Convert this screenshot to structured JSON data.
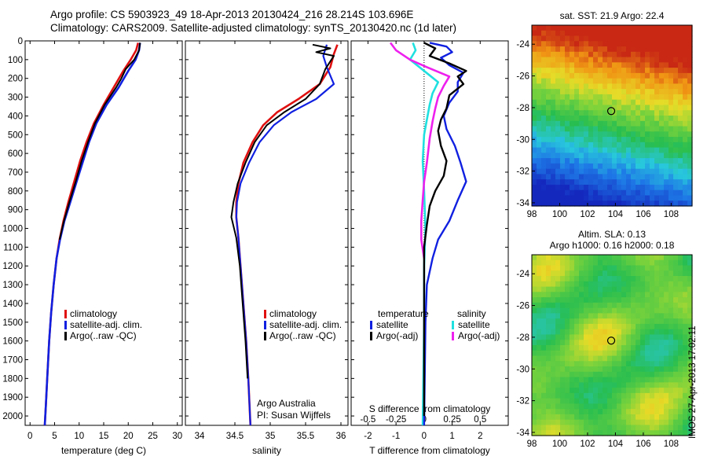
{
  "header": {
    "line1": "Argo profile: CS 5903923_49 18-Apr-2013 20130424_216 28.214S 103.696E",
    "line2": "Climatology: CARS2009. Satellite-adjusted climatology: synTS_20130420.nc (1d later)"
  },
  "stamp": "IMOS 27-Apr-2013 17:02:11",
  "colors": {
    "climatology": "#e01010",
    "satellite": "#1020e0",
    "argo": "#000000",
    "satellite_s": "#20e0e0",
    "argo_s": "#ee20ee"
  },
  "chart_data": [
    {
      "type": "line",
      "xlabel": "temperature (deg C)",
      "ylim": [
        0,
        2050
      ],
      "xlim": [
        -1,
        31
      ],
      "xticks": [
        0,
        5,
        10,
        15,
        20,
        25,
        30
      ],
      "yticks": [
        0,
        100,
        200,
        300,
        400,
        500,
        600,
        700,
        800,
        900,
        1000,
        1100,
        1200,
        1300,
        1400,
        1500,
        1600,
        1700,
        1800,
        1900,
        2000
      ],
      "legend": [
        "climatology",
        "satellite-adj. clim.",
        "Argo(..raw -QC)"
      ],
      "series": [
        {
          "name": "climatology",
          "color_key": "climatology",
          "points": [
            [
              22,
              10
            ],
            [
              21.6,
              50
            ],
            [
              20.5,
              100
            ],
            [
              19,
              160
            ],
            [
              17,
              250
            ],
            [
              15,
              340
            ],
            [
              13,
              440
            ],
            [
              11.5,
              540
            ],
            [
              10.2,
              640
            ],
            [
              9,
              750
            ],
            [
              7.8,
              860
            ],
            [
              6.8,
              960
            ],
            [
              6,
              1060
            ],
            [
              5.4,
              1160
            ],
            [
              4.8,
              1300
            ],
            [
              4.3,
              1450
            ],
            [
              3.9,
              1600
            ],
            [
              3.5,
              1800
            ],
            [
              3.2,
              1950
            ],
            [
              3.0,
              2050
            ]
          ]
        },
        {
          "name": "satellite-adj. clim.",
          "color_key": "satellite",
          "points": [
            [
              22.4,
              10
            ],
            [
              22.2,
              50
            ],
            [
              21.5,
              100
            ],
            [
              20,
              160
            ],
            [
              18,
              250
            ],
            [
              15.6,
              340
            ],
            [
              13.5,
              440
            ],
            [
              12,
              540
            ],
            [
              10.8,
              640
            ],
            [
              9.5,
              750
            ],
            [
              8.2,
              860
            ],
            [
              7,
              960
            ],
            [
              6.1,
              1060
            ],
            [
              5.4,
              1160
            ],
            [
              4.8,
              1300
            ],
            [
              4.3,
              1450
            ],
            [
              3.9,
              1600
            ],
            [
              3.5,
              1800
            ],
            [
              3.2,
              1950
            ],
            [
              3.0,
              2050
            ]
          ]
        },
        {
          "name": "Argo(..raw -QC)",
          "color_key": "argo",
          "points": [
            [
              22.4,
              10
            ],
            [
              22.2,
              50
            ],
            [
              21.2,
              100
            ],
            [
              19.5,
              150
            ],
            [
              18.6,
              200
            ],
            [
              17.5,
              250
            ],
            [
              15.2,
              340
            ],
            [
              13.2,
              440
            ],
            [
              11.8,
              540
            ],
            [
              10.5,
              640
            ],
            [
              9.3,
              750
            ],
            [
              8,
              860
            ],
            [
              6.9,
              960
            ],
            [
              6,
              1060
            ]
          ]
        }
      ]
    },
    {
      "type": "line",
      "xlabel": "salinity",
      "ylim": [
        0,
        2050
      ],
      "xlim": [
        33.8,
        36.1
      ],
      "xticks": [
        34,
        34.5,
        35,
        35.5,
        36
      ],
      "xticklabels": [
        "34",
        "34.5",
        "35",
        "35.5",
        "36"
      ],
      "legend": [
        "climatology",
        "satellite-adj. clim.",
        "Argo(..raw -QC)"
      ],
      "annotation": [
        "Argo Australia",
        "PI: Susan Wijffels"
      ],
      "series": [
        {
          "name": "climatology",
          "color_key": "climatology",
          "points": [
            [
              35.95,
              20
            ],
            [
              35.9,
              70
            ],
            [
              35.85,
              140
            ],
            [
              35.7,
              230
            ],
            [
              35.4,
              310
            ],
            [
              35.1,
              380
            ],
            [
              34.9,
              450
            ],
            [
              34.75,
              540
            ],
            [
              34.62,
              650
            ],
            [
              34.55,
              760
            ],
            [
              34.52,
              860
            ],
            [
              34.52,
              940
            ],
            [
              34.55,
              1050
            ],
            [
              34.58,
              1200
            ],
            [
              34.62,
              1400
            ],
            [
              34.66,
              1600
            ],
            [
              34.69,
              1800
            ],
            [
              34.72,
              2050
            ]
          ]
        },
        {
          "name": "satellite-adj. clim.",
          "color_key": "satellite",
          "points": [
            [
              35.8,
              20
            ],
            [
              35.75,
              80
            ],
            [
              35.8,
              140
            ],
            [
              35.9,
              230
            ],
            [
              35.65,
              310
            ],
            [
              35.3,
              380
            ],
            [
              35.05,
              450
            ],
            [
              34.85,
              540
            ],
            [
              34.7,
              650
            ],
            [
              34.58,
              760
            ],
            [
              34.53,
              860
            ],
            [
              34.52,
              940
            ],
            [
              34.55,
              1050
            ],
            [
              34.58,
              1200
            ],
            [
              34.62,
              1400
            ],
            [
              34.66,
              1600
            ],
            [
              34.69,
              1800
            ],
            [
              34.72,
              2050
            ]
          ]
        },
        {
          "name": "Argo(..raw -QC)",
          "color_key": "argo",
          "points": [
            [
              35.6,
              20
            ],
            [
              35.85,
              40
            ],
            [
              35.65,
              60
            ],
            [
              35.9,
              80
            ],
            [
              35.78,
              150
            ],
            [
              35.7,
              230
            ],
            [
              35.5,
              310
            ],
            [
              35.2,
              380
            ],
            [
              34.95,
              450
            ],
            [
              34.78,
              540
            ],
            [
              34.65,
              650
            ],
            [
              34.54,
              760
            ],
            [
              34.48,
              860
            ],
            [
              34.45,
              940
            ],
            [
              34.52,
              1050
            ],
            [
              34.57,
              1200
            ],
            [
              34.61,
              1400
            ],
            [
              34.65,
              1600
            ],
            [
              34.68,
              1800
            ]
          ]
        }
      ]
    },
    {
      "type": "line",
      "xlabel": "T difference from climatology",
      "xlabel_top": "S difference from climatology",
      "ylim": [
        0,
        2050
      ],
      "xlim": [
        -2.6,
        3.0
      ],
      "xticks": [
        -2,
        -1,
        0,
        1,
        2
      ],
      "xticks_s": [
        "-0.5",
        "-0.25",
        "0",
        "0.25",
        "0.5"
      ],
      "legend_titles": [
        "temperature",
        "salinity"
      ],
      "legend": [
        "satellite",
        "Argo(-adj)",
        "satellite",
        "Argo(-adj)"
      ],
      "series": [
        {
          "name": "satellite",
          "color_key": "satellite",
          "points": [
            [
              0.2,
              10
            ],
            [
              0.8,
              30
            ],
            [
              1,
              60
            ],
            [
              0.6,
              90
            ],
            [
              0.9,
              130
            ],
            [
              1.4,
              170
            ],
            [
              1.2,
              220
            ],
            [
              1.2,
              270
            ],
            [
              0.9,
              330
            ],
            [
              0.7,
              400
            ],
            [
              0.8,
              470
            ],
            [
              1.1,
              560
            ],
            [
              1.3,
              650
            ],
            [
              1.5,
              750
            ],
            [
              1.2,
              850
            ],
            [
              0.9,
              960
            ],
            [
              0.5,
              1060
            ],
            [
              0.3,
              1160
            ],
            [
              0.1,
              1300
            ],
            [
              0.05,
              1500
            ],
            [
              0.0,
              2050
            ]
          ]
        },
        {
          "name": "Argo(-adj)",
          "color_key": "argo",
          "points": [
            [
              0,
              10
            ],
            [
              0.4,
              40
            ],
            [
              0.2,
              80
            ],
            [
              0.9,
              120
            ],
            [
              1.5,
              160
            ],
            [
              1.2,
              190
            ],
            [
              1.4,
              230
            ],
            [
              0.9,
              290
            ],
            [
              0.8,
              360
            ],
            [
              0.6,
              420
            ],
            [
              0.5,
              480
            ],
            [
              0.6,
              560
            ],
            [
              0.8,
              640
            ],
            [
              0.7,
              720
            ],
            [
              0.4,
              800
            ],
            [
              0.2,
              880
            ],
            [
              0.1,
              980
            ],
            [
              0.0,
              1100
            ],
            [
              0.0,
              1300
            ],
            [
              0.0,
              2000
            ]
          ]
        },
        {
          "name": "satellite",
          "color_key": "satellite_s",
          "points": [
            [
              -0.4,
              10
            ],
            [
              -0.3,
              50
            ],
            [
              -0.5,
              100
            ],
            [
              0,
              160
            ],
            [
              0.5,
              220
            ],
            [
              0.3,
              280
            ],
            [
              0.2,
              340
            ],
            [
              0.1,
              420
            ],
            [
              0,
              500
            ],
            [
              -0.05,
              640
            ],
            [
              0,
              800
            ],
            [
              0.05,
              1000
            ],
            [
              0,
              1200
            ],
            [
              0,
              1500
            ],
            [
              -0.05,
              2050
            ]
          ]
        },
        {
          "name": "Argo(-adj)",
          "color_key": "argo_s",
          "points": [
            [
              -1.2,
              10
            ],
            [
              -1,
              50
            ],
            [
              -0.5,
              100
            ],
            [
              0.1,
              140
            ],
            [
              0.9,
              190
            ],
            [
              0.7,
              240
            ],
            [
              0.5,
              300
            ],
            [
              0.4,
              360
            ],
            [
              0.3,
              430
            ],
            [
              0.2,
              520
            ],
            [
              0.1,
              650
            ],
            [
              0.0,
              750
            ],
            [
              -0.05,
              850
            ],
            [
              -0.1,
              960
            ],
            [
              -0.1,
              1060
            ],
            [
              0,
              1160
            ]
          ]
        }
      ]
    },
    {
      "type": "heatmap",
      "title": "sat. SST: 21.9  Argo: 22.4",
      "xlim": [
        98,
        109.5
      ],
      "ylim": [
        -34.2,
        -22.8
      ],
      "xticks": [
        98,
        100,
        102,
        104,
        106,
        108
      ],
      "yticks": [
        -24,
        -26,
        -28,
        -30,
        -32,
        -34
      ],
      "marker": [
        103.696,
        -28.214
      ]
    },
    {
      "type": "heatmap",
      "title": [
        "Altim. SLA: 0.13",
        "Argo h1000: 0.16  h2000: 0.18"
      ],
      "xlim": [
        98,
        109.5
      ],
      "ylim": [
        -34.2,
        -22.8
      ],
      "xticks": [
        98,
        100,
        102,
        104,
        106,
        108
      ],
      "yticks": [
        -24,
        -26,
        -28,
        -30,
        -32,
        -34
      ],
      "marker": [
        103.696,
        -28.214
      ]
    }
  ]
}
